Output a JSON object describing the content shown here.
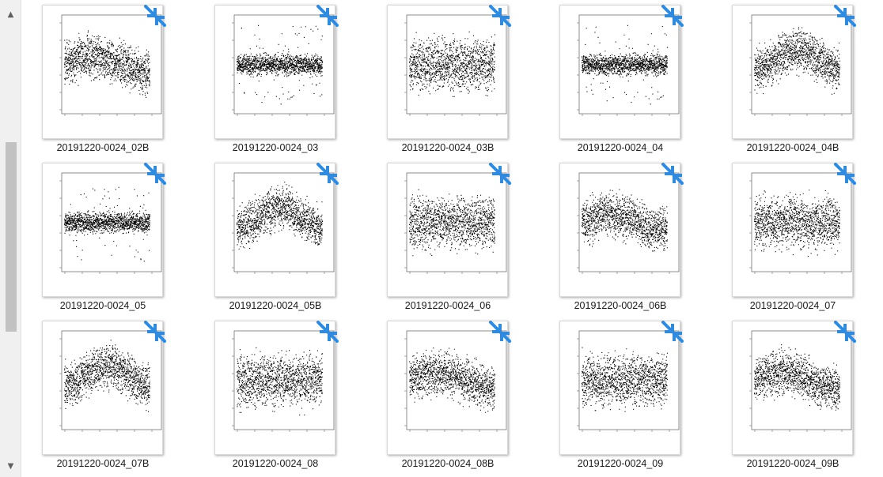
{
  "scroll": {
    "up_glyph": "▲",
    "down_glyph": "▼"
  },
  "items": [
    {
      "label": "20191220-0024_02B",
      "style": "wide-trend",
      "seed": 11
    },
    {
      "label": "20191220-0024_03",
      "style": "dense-band",
      "seed": 23
    },
    {
      "label": "20191220-0024_03B",
      "style": "wide",
      "seed": 37
    },
    {
      "label": "20191220-0024_04",
      "style": "dense-band",
      "seed": 41
    },
    {
      "label": "20191220-0024_04B",
      "style": "wide-dip",
      "seed": 53
    },
    {
      "label": "20191220-0024_05",
      "style": "dense-band",
      "seed": 67
    },
    {
      "label": "20191220-0024_05B",
      "style": "wide-dip",
      "seed": 71
    },
    {
      "label": "20191220-0024_06",
      "style": "wide",
      "seed": 83
    },
    {
      "label": "20191220-0024_06B",
      "style": "wide-trend",
      "seed": 97
    },
    {
      "label": "20191220-0024_07",
      "style": "wide",
      "seed": 101
    },
    {
      "label": "20191220-0024_07B",
      "style": "wide-dip",
      "seed": 113
    },
    {
      "label": "20191220-0024_08",
      "style": "wide",
      "seed": 127
    },
    {
      "label": "20191220-0024_08B",
      "style": "wide-trend",
      "seed": 131
    },
    {
      "label": "20191220-0024_09",
      "style": "wide",
      "seed": 149
    },
    {
      "label": "20191220-0024_09B",
      "style": "wide-trend",
      "seed": 157
    }
  ],
  "icon": {
    "name": "sync-icon",
    "color": "#2f8be0"
  },
  "colors": {
    "dots": "#000000",
    "caption": "#1a1a1a"
  }
}
